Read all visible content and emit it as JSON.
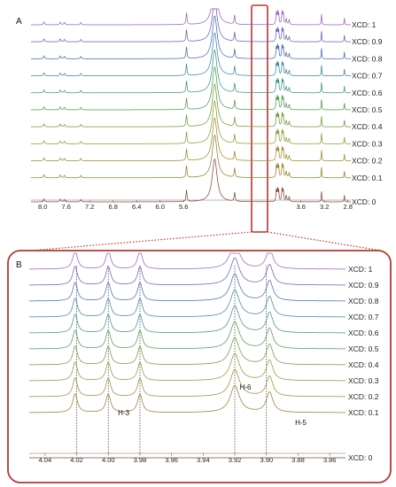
{
  "chart_data": [
    {
      "type": "line",
      "panel": "A",
      "x_reversed": true,
      "xlim": [
        8.2,
        2.75
      ],
      "x_ticks": [
        "8.0",
        "7.6",
        "7.2",
        "6.8",
        "6.4",
        "6.0",
        "5.6",
        "3.6",
        "3.2",
        "2.8"
      ],
      "series": [
        {
          "name": "XCD: 0",
          "color": "#8a4a3a"
        },
        {
          "name": "XCD: 0.1",
          "color": "#9a7d2c"
        },
        {
          "name": "XCD: 0.2",
          "color": "#a08b30"
        },
        {
          "name": "XCD: 0.3",
          "color": "#8e9a34"
        },
        {
          "name": "XCD: 0.4",
          "color": "#6f9a3b"
        },
        {
          "name": "XCD: 0.5",
          "color": "#4f9a55"
        },
        {
          "name": "XCD: 0.6",
          "color": "#3e9486"
        },
        {
          "name": "XCD: 0.7",
          "color": "#3d86a6"
        },
        {
          "name": "XCD: 0.8",
          "color": "#4a6bb4"
        },
        {
          "name": "XCD: 0.9",
          "color": "#6d5db8"
        },
        {
          "name": "XCD: 1",
          "color": "#9a62bd"
        }
      ],
      "peaks": [
        {
          "x": 7.98,
          "h": 0.15,
          "w": 0.012
        },
        {
          "x": 7.7,
          "h": 0.14,
          "w": 0.012
        },
        {
          "x": 7.63,
          "h": 0.12,
          "w": 0.012
        },
        {
          "x": 7.35,
          "h": 0.12,
          "w": 0.012
        },
        {
          "x": 5.55,
          "h": 0.6,
          "w": 0.01
        },
        {
          "x": 5.07,
          "h": 2.2,
          "w": 0.05
        },
        {
          "x": 4.73,
          "h": 0.45,
          "w": 0.01
        },
        {
          "x": 4.02,
          "h": 0.55,
          "w": 0.008
        },
        {
          "x": 4.0,
          "h": 0.6,
          "w": 0.008
        },
        {
          "x": 3.98,
          "h": 0.55,
          "w": 0.008
        },
        {
          "x": 3.92,
          "h": 0.65,
          "w": 0.01
        },
        {
          "x": 3.9,
          "h": 0.5,
          "w": 0.008
        },
        {
          "x": 3.85,
          "h": 0.3,
          "w": 0.01
        },
        {
          "x": 3.8,
          "h": 0.25,
          "w": 0.01
        },
        {
          "x": 3.25,
          "h": 0.55,
          "w": 0.006
        },
        {
          "x": 2.86,
          "h": 0.35,
          "w": 0.006
        }
      ],
      "highlight_range": [
        4.06,
        3.86
      ]
    },
    {
      "type": "line",
      "panel": "B",
      "x_reversed": true,
      "xlim": [
        4.05,
        3.85
      ],
      "x_ticks": [
        "4.04",
        "4.02",
        "4.00",
        "3.98",
        "3.96",
        "3.94",
        "3.92",
        "3.90",
        "3.88",
        "3.86"
      ],
      "reference_lines": [
        4.02,
        4.0,
        3.98,
        3.92,
        3.9
      ],
      "annotations": [
        {
          "text": "H-3",
          "x": 3.995
        },
        {
          "text": "H-6",
          "x": 3.918
        },
        {
          "text": "H-5",
          "x": 3.883
        }
      ],
      "series": [
        {
          "name": "XCD: 0",
          "color": "#8a4a3a"
        },
        {
          "name": "XCD: 0.1",
          "color": "#9a7d2c"
        },
        {
          "name": "XCD: 0.2",
          "color": "#a08b30"
        },
        {
          "name": "XCD: 0.3",
          "color": "#8e9a34"
        },
        {
          "name": "XCD: 0.4",
          "color": "#6f9a3b"
        },
        {
          "name": "XCD: 0.5",
          "color": "#4f9a55"
        },
        {
          "name": "XCD: 0.6",
          "color": "#3e9486"
        },
        {
          "name": "XCD: 0.7",
          "color": "#3d86a6"
        },
        {
          "name": "XCD: 0.8",
          "color": "#4a6bb4"
        },
        {
          "name": "XCD: 0.9",
          "color": "#6d5db8"
        },
        {
          "name": "XCD: 1",
          "color": "#9a62bd"
        }
      ],
      "peaks": [
        {
          "x": 4.021,
          "h": 0.55,
          "w": 0.0018
        },
        {
          "x": 4.0,
          "h": 0.55,
          "w": 0.0018
        },
        {
          "x": 3.98,
          "h": 0.55,
          "w": 0.0018
        },
        {
          "x": 3.92,
          "h": 0.8,
          "w": 0.0035
        },
        {
          "x": 3.898,
          "h": 0.6,
          "w": 0.0025
        }
      ]
    }
  ]
}
